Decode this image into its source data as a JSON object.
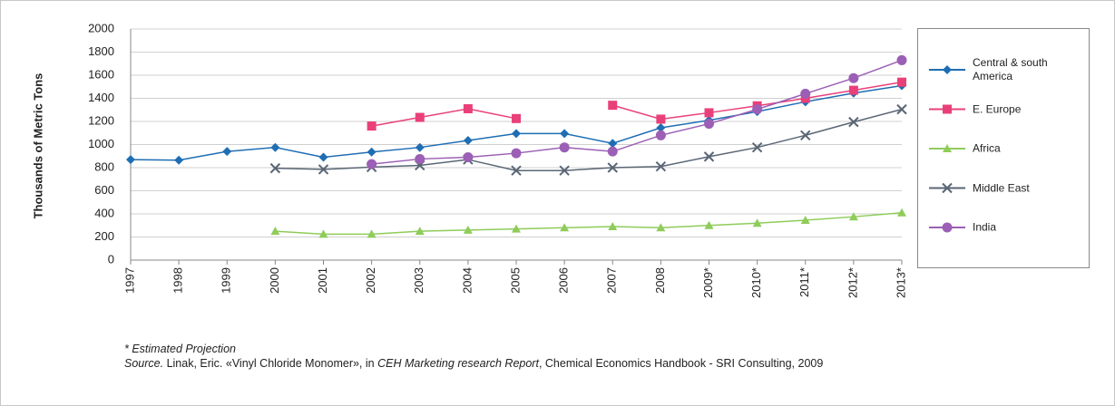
{
  "chart_data": {
    "type": "line",
    "ylabel": "Thousands of Metric Tons",
    "categories": [
      "1997",
      "1998",
      "1999",
      "2000",
      "2001",
      "2002",
      "2003",
      "2004",
      "2005",
      "2006",
      "2007",
      "2008",
      "2009*",
      "2010*",
      "2011*",
      "2012*",
      "2013*"
    ],
    "ylim": [
      0,
      2000
    ],
    "yticks": [
      0,
      200,
      400,
      600,
      800,
      1000,
      1200,
      1400,
      1600,
      1800,
      2000
    ],
    "grid": true,
    "legend": "right",
    "series": [
      {
        "name": "Central & south America",
        "color": "#1f6eb4",
        "marker": "diamond",
        "values": [
          870,
          865,
          940,
          975,
          890,
          935,
          975,
          1035,
          1095,
          1095,
          1010,
          1145,
          1210,
          1285,
          1370,
          1445,
          1510
        ]
      },
      {
        "name": "E. Europe",
        "color": "#e9407a",
        "marker": "square",
        "values": [
          null,
          null,
          null,
          null,
          null,
          1160,
          1235,
          1310,
          1225,
          null,
          1340,
          1220,
          1275,
          1335,
          1400,
          1470,
          1540
        ]
      },
      {
        "name": "Africa",
        "color": "#8fcc5a",
        "marker": "triangle",
        "values": [
          null,
          null,
          null,
          250,
          225,
          225,
          250,
          260,
          270,
          280,
          290,
          280,
          300,
          320,
          345,
          375,
          410
        ]
      },
      {
        "name": "Middle East",
        "color": "#5a6675",
        "marker": "x",
        "values": [
          null,
          null,
          null,
          795,
          785,
          805,
          820,
          870,
          775,
          775,
          800,
          810,
          895,
          975,
          1080,
          1195,
          1305
        ]
      },
      {
        "name": "India",
        "color": "#9b5fb5",
        "marker": "circle",
        "values": [
          null,
          null,
          null,
          null,
          null,
          830,
          875,
          890,
          925,
          975,
          940,
          1080,
          1180,
          1305,
          1440,
          1575,
          1730
        ]
      }
    ],
    "note": "* Estimated Projection",
    "source": [
      "Source.",
      " Linak, Eric. «Vinyl Chloride Monomer», in ",
      "CEH Marketing research Report",
      ", Chemical Economics Handbook - SRI Consulting, 2009"
    ]
  }
}
